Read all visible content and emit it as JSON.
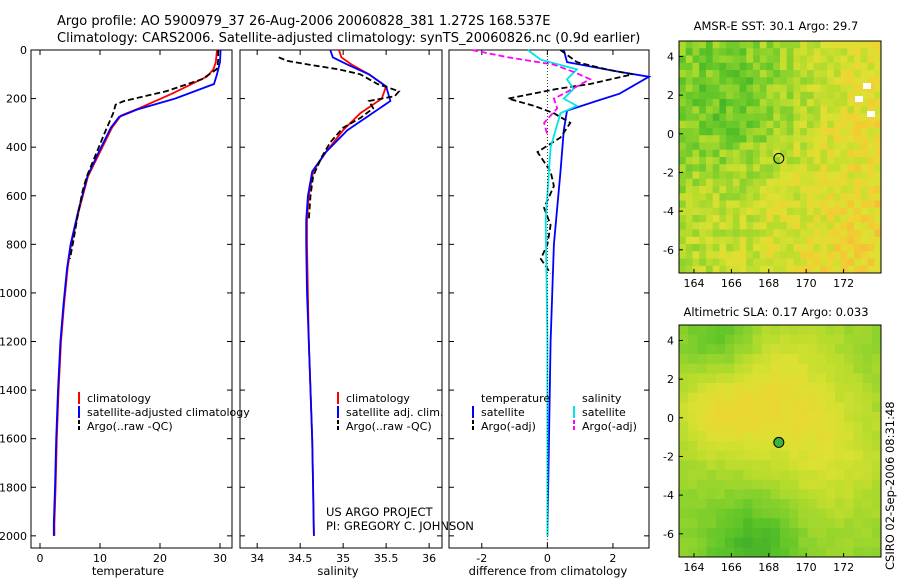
{
  "header": {
    "title_line1": "Argo profile: AO 5900979_37 26-Aug-2006 20060828_381 1.272S 168.537E",
    "title_line2": "Climatology: CARS2006. Satellite-adjusted climatology: synTS_20060826.nc (0.9d earlier)"
  },
  "colors": {
    "climatology": "#ff0000",
    "satellite": "#0000ff",
    "argo": "#000000",
    "satellite_salinity": "#00e5e5",
    "argo_adj_salinity": "#ff00ff"
  },
  "chart_data": [
    {
      "type": "line",
      "panel": "temperature",
      "xlabel": "temperature",
      "ylabel": "",
      "xlim": [
        -1.5,
        32
      ],
      "ylim": [
        2050,
        0
      ],
      "xticks": [
        "0",
        "10",
        "20",
        "30"
      ],
      "xtick_values": [
        0,
        10,
        20,
        30
      ],
      "yticks": [
        "0",
        "200",
        "400",
        "600",
        "800",
        "1000",
        "1200",
        "1400",
        "1600",
        "1800",
        "2000"
      ],
      "ytick_values": [
        0,
        200,
        400,
        600,
        800,
        1000,
        1200,
        1400,
        1600,
        1800,
        2000
      ],
      "legend": [
        "climatology",
        "satellite-adjusted climatology",
        "Argo(..raw -QC)"
      ],
      "series": [
        {
          "name": "climatology",
          "color": "#ff0000",
          "dash": "",
          "x": [
            29.5,
            29.3,
            28.9,
            27.8,
            22.0,
            16.5,
            13.5,
            12.0,
            10.0,
            8.0,
            6.5,
            5.2,
            4.6,
            4.0,
            3.5,
            3.1,
            2.8,
            2.6,
            2.4,
            2.4
          ],
          "y": [
            0,
            50,
            80,
            110,
            180,
            240,
            270,
            320,
            420,
            520,
            660,
            800,
            900,
            1050,
            1200,
            1400,
            1600,
            1800,
            1950,
            2000
          ]
        },
        {
          "name": "satellite-adjusted climatology",
          "color": "#0000ff",
          "dash": "",
          "x": [
            30.1,
            30.0,
            29.5,
            29.0,
            22.5,
            16.2,
            13.2,
            11.8,
            9.8,
            7.9,
            6.4,
            5.1,
            4.5,
            3.9,
            3.4,
            3.0,
            2.7,
            2.5,
            2.3,
            2.3
          ],
          "y": [
            0,
            50,
            100,
            140,
            200,
            245,
            275,
            320,
            420,
            520,
            660,
            800,
            900,
            1050,
            1200,
            1400,
            1600,
            1800,
            1950,
            2000
          ]
        },
        {
          "name": "Argo(..raw -QC)",
          "color": "#000000",
          "dash": "6,3",
          "x": [
            29.7,
            29.7,
            29.6,
            29.4,
            27.0,
            21.0,
            14.0,
            12.6,
            12.2,
            10.8,
            9.3,
            7.8,
            7.1,
            6.3,
            5.6,
            5.0
          ],
          "y": [
            0,
            40,
            60,
            80,
            120,
            170,
            210,
            225,
            260,
            340,
            430,
            520,
            580,
            680,
            780,
            860
          ]
        }
      ]
    },
    {
      "type": "line",
      "panel": "salinity",
      "xlabel": "salinity",
      "ylabel": "",
      "xlim": [
        33.8,
        36.15
      ],
      "ylim": [
        2050,
        0
      ],
      "xticks": [
        "34",
        "34.5",
        "35",
        "35.5",
        "36"
      ],
      "xtick_values": [
        34,
        34.5,
        35,
        35.5,
        36
      ],
      "legend": [
        "climatology",
        "satellite adj. clim.",
        "Argo(..raw -QC)"
      ],
      "annotations": [
        "US ARGO PROJECT",
        "PI: GREGORY C. JOHNSON"
      ],
      "series": [
        {
          "name": "climatology",
          "color": "#ff0000",
          "dash": "",
          "x": [
            34.95,
            34.98,
            35.1,
            35.3,
            35.5,
            35.45,
            35.2,
            35.0,
            34.8,
            34.65,
            34.6,
            34.58,
            34.58,
            34.59,
            34.6,
            34.62,
            34.64,
            34.65,
            34.66
          ],
          "y": [
            0,
            30,
            60,
            100,
            150,
            200,
            260,
            330,
            420,
            500,
            600,
            700,
            800,
            1000,
            1200,
            1400,
            1600,
            1800,
            2000
          ]
        },
        {
          "name": "satellite adj. clim.",
          "color": "#0000ff",
          "dash": "",
          "x": [
            34.85,
            34.88,
            35.05,
            35.3,
            35.5,
            35.55,
            35.3,
            35.05,
            34.8,
            34.64,
            34.59,
            34.57,
            34.57,
            34.58,
            34.6,
            34.62,
            34.64,
            34.65,
            34.66
          ],
          "y": [
            0,
            30,
            60,
            100,
            150,
            210,
            270,
            330,
            420,
            500,
            600,
            700,
            800,
            1000,
            1200,
            1400,
            1600,
            1800,
            2000
          ]
        },
        {
          "name": "Argo(..raw -QC)",
          "color": "#000000",
          "dash": "6,3",
          "x": [
            34.25,
            34.35,
            34.6,
            34.95,
            35.2,
            35.4,
            35.65,
            35.6,
            35.3,
            35.35,
            35.2,
            35.0,
            34.85,
            34.75,
            34.65,
            34.62,
            34.6
          ],
          "y": [
            30,
            45,
            60,
            80,
            100,
            140,
            170,
            190,
            210,
            240,
            280,
            320,
            380,
            440,
            520,
            600,
            700
          ]
        }
      ]
    },
    {
      "type": "line",
      "panel": "difference",
      "xlabel": "difference from climatology",
      "ylabel": "",
      "xlim": [
        -3,
        3.1
      ],
      "ylim": [
        2050,
        0
      ],
      "xticks": [
        "-2",
        "0",
        "2"
      ],
      "xtick_values": [
        -2,
        0,
        2
      ],
      "legend_headers": [
        "temperature",
        "salinity"
      ],
      "legend": [
        "satellite",
        "Argo(-adj)",
        "satellite",
        "Argo(-adj)"
      ],
      "series": [
        {
          "name": "satellite",
          "color": "#0000ff",
          "dash": "",
          "x": [
            0.5,
            0.6,
            2.2,
            3.1,
            2.2,
            1.5,
            0.6,
            0.5,
            0.4,
            0.2,
            0.1,
            0.05,
            0.0
          ],
          "y": [
            0,
            50,
            90,
            110,
            180,
            210,
            250,
            330,
            500,
            800,
            1200,
            1600,
            2000
          ]
        },
        {
          "name": "Argo(-adj)",
          "color": "#000000",
          "dash": "6,3",
          "x": [
            0.4,
            0.9,
            1.8,
            2.6,
            1.3,
            0.3,
            -1.2,
            -0.4,
            0.2,
            0.7,
            0.4,
            -0.3,
            0.1,
            0.2,
            -0.1,
            0.1,
            0.0,
            -0.2,
            0.1
          ],
          "y": [
            0,
            50,
            80,
            100,
            140,
            160,
            200,
            230,
            260,
            300,
            360,
            420,
            500,
            560,
            650,
            720,
            800,
            860,
            920
          ]
        },
        {
          "name": "satellite",
          "color": "#00e5e5",
          "dash": "",
          "x": [
            -0.6,
            -0.2,
            0.9,
            0.6,
            0.8,
            0.5,
            0.9,
            0.4,
            0.1,
            -0.05,
            0.0,
            0.0
          ],
          "y": [
            0,
            40,
            80,
            120,
            160,
            200,
            230,
            260,
            400,
            700,
            1200,
            2000
          ]
        },
        {
          "name": "Argo(-adj)",
          "color": "#ff00ff",
          "dash": "6,3",
          "x": [
            -2.3,
            -1.2,
            0.2,
            0.8,
            1.3,
            0.9,
            0.5,
            0.2,
            0.3,
            -0.1,
            0.0
          ],
          "y": [
            0,
            30,
            60,
            90,
            120,
            150,
            180,
            200,
            240,
            300,
            350
          ]
        }
      ]
    },
    {
      "type": "heatmap",
      "panel": "sst-map",
      "title": "AMSR-E SST: 30.1 Argo: 29.7",
      "xlim": [
        163.2,
        174.0
      ],
      "ylim": [
        -7.2,
        4.8
      ],
      "xticks": [
        "164",
        "166",
        "168",
        "170",
        "172"
      ],
      "xtick_values": [
        164,
        166,
        168,
        170,
        172
      ],
      "yticks": [
        "4",
        "2",
        "0",
        "-2",
        "-4",
        "-6"
      ],
      "ytick_values": [
        4,
        2,
        0,
        -2,
        -4,
        -6
      ],
      "marker": {
        "lon": 168.537,
        "lat": -1.272
      },
      "colors": [
        "#50c828",
        "#78d028",
        "#a0d830",
        "#c8e030",
        "#e6e632",
        "#f0d232",
        "#f5be37"
      ]
    },
    {
      "type": "heatmap",
      "panel": "sla-map",
      "title": "Altimetric SLA: 0.17 Argo: 0.033",
      "xlim": [
        163.2,
        174.0
      ],
      "ylim": [
        -7.2,
        4.8
      ],
      "xticks": [
        "164",
        "166",
        "168",
        "170",
        "172"
      ],
      "xtick_values": [
        164,
        166,
        168,
        170,
        172
      ],
      "yticks": [
        "4",
        "2",
        "0",
        "-2",
        "-4",
        "-6"
      ],
      "ytick_values": [
        4,
        2,
        0,
        -2,
        -4,
        -6
      ],
      "marker": {
        "lon": 168.537,
        "lat": -1.272
      },
      "side_label": "CSIRO 02-Sep-2006 08:31:48"
    }
  ]
}
